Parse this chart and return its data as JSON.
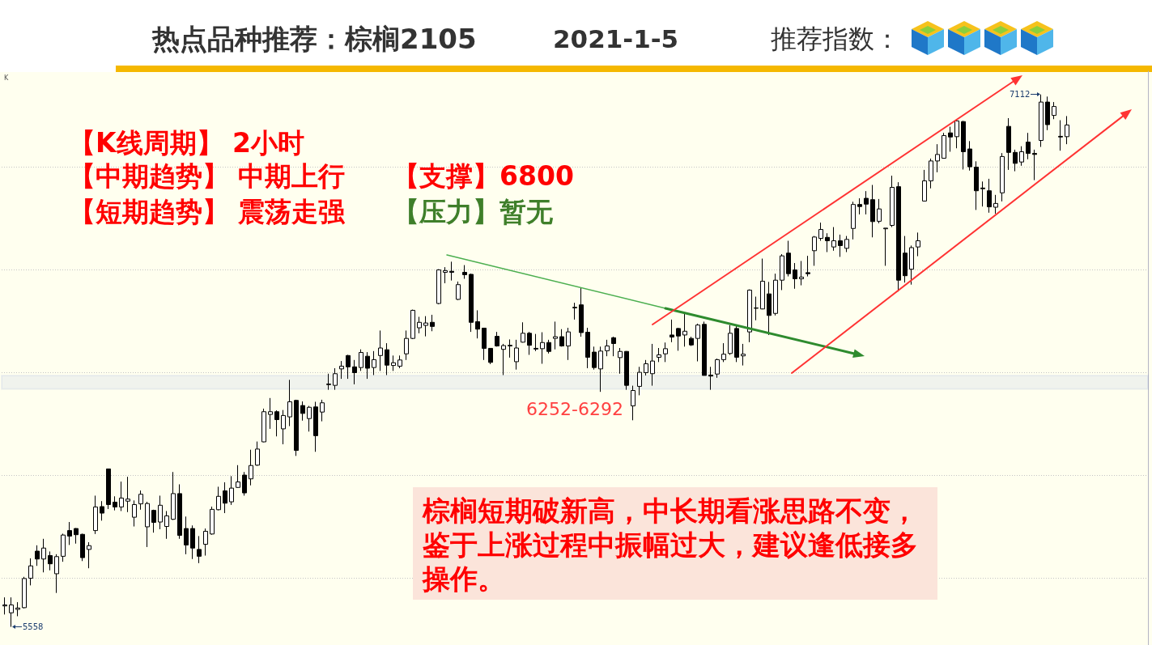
{
  "chart_data": {
    "type": "candlestick",
    "title": "热点品种推荐：棕榈2105",
    "subtitle": "2021-1-5",
    "categories": [
      null,
      null,
      null,
      null,
      null,
      null,
      null,
      null,
      null,
      null,
      null,
      null,
      null,
      null,
      null,
      null,
      null,
      null,
      null,
      null,
      null,
      null,
      null,
      null,
      null,
      null,
      null,
      null,
      null,
      null,
      null,
      null,
      null,
      null,
      null,
      null,
      null,
      null,
      null,
      null,
      null,
      null,
      null,
      null,
      null,
      null,
      null,
      null,
      null,
      null,
      null,
      null,
      null,
      null,
      null,
      null,
      null,
      null,
      null,
      null,
      null,
      null,
      null,
      null,
      null,
      null,
      null,
      null,
      null,
      null,
      null,
      null,
      null,
      null,
      null,
      null,
      null,
      null,
      null,
      null,
      null,
      null,
      null,
      null,
      null,
      null,
      null,
      null,
      null,
      null,
      null,
      null,
      null,
      null,
      null,
      null,
      null,
      null,
      null,
      null,
      null,
      null,
      null,
      null,
      null,
      null,
      null,
      null,
      null,
      null,
      null,
      null,
      null,
      null,
      null,
      null,
      null,
      null,
      null,
      null,
      null,
      null,
      null,
      null,
      null,
      null,
      null,
      null,
      null,
      null,
      null,
      null,
      null,
      null,
      null,
      null,
      null,
      null,
      null,
      null,
      null,
      null,
      null,
      null,
      null,
      null,
      null,
      null,
      null,
      null,
      null,
      null,
      null,
      null,
      null,
      null,
      null,
      null,
      null,
      null,
      null,
      null,
      null,
      null,
      null,
      null,
      null,
      null,
      null,
      null,
      null,
      null,
      null,
      null,
      null,
      null,
      null
    ],
    "ohlc": [
      [
        5619,
        5644,
        5594,
        5622
      ],
      [
        5599,
        5644,
        5558,
        5622
      ],
      [
        5609,
        5630,
        5589,
        5613
      ],
      [
        5614,
        5704,
        5612,
        5699
      ],
      [
        5700,
        5758,
        5679,
        5736
      ],
      [
        5779,
        5796,
        5736,
        5756
      ],
      [
        5756,
        5815,
        5717,
        5788
      ],
      [
        5766,
        5778,
        5723,
        5742
      ],
      [
        5713,
        5770,
        5657,
        5763
      ],
      [
        5764,
        5830,
        5748,
        5826
      ],
      [
        5839,
        5864,
        5797,
        5823
      ],
      [
        5845,
        5846,
        5801,
        5827
      ],
      [
        5828,
        5830,
        5750,
        5760
      ],
      [
        5784,
        5805,
        5729,
        5795
      ],
      [
        5839,
        5941,
        5829,
        5908
      ],
      [
        5909,
        5925,
        5868,
        5890
      ],
      [
        6019,
        6019,
        5902,
        5915
      ],
      [
        5922,
        5939,
        5898,
        5908
      ],
      [
        5908,
        5982,
        5896,
        5934
      ],
      [
        5925,
        5996,
        5893,
        5931
      ],
      [
        5878,
        5927,
        5851,
        5915
      ],
      [
        5917,
        5956,
        5900,
        5945
      ],
      [
        5850,
        5923,
        5791,
        5918
      ],
      [
        5898,
        5900,
        5833,
        5863
      ],
      [
        5864,
        5941,
        5843,
        5913
      ],
      [
        5851,
        5896,
        5815,
        5882
      ],
      [
        5872,
        6010,
        5870,
        5947
      ],
      [
        5947,
        5974,
        5815,
        5825
      ],
      [
        5845,
        5880,
        5770,
        5797
      ],
      [
        5845,
        5854,
        5756,
        5788
      ],
      [
        5784,
        5823,
        5744,
        5764
      ],
      [
        5799,
        5845,
        5766,
        5837
      ],
      [
        5829,
        5909,
        5827,
        5901
      ],
      [
        5900,
        5967,
        5898,
        5939
      ],
      [
        5955,
        5980,
        5890,
        5919
      ],
      [
        5923,
        5998,
        5914,
        5963
      ],
      [
        5965,
        6030,
        5964,
        5981
      ],
      [
        6001,
        6010,
        5941,
        5949
      ],
      [
        5990,
        6075,
        5971,
        6029
      ],
      [
        6030,
        6099,
        6028,
        6077
      ],
      [
        6098,
        6195,
        6097,
        6186
      ],
      [
        6178,
        6226,
        6136,
        6186
      ],
      [
        6186,
        6190,
        6114,
        6163
      ],
      [
        6136,
        6191,
        6091,
        6175
      ],
      [
        6171,
        6279,
        6144,
        6215
      ],
      [
        6219,
        6221,
        6057,
        6073
      ],
      [
        6204,
        6216,
        6160,
        6181
      ],
      [
        6166,
        6203,
        6128,
        6199
      ],
      [
        6200,
        6215,
        6069,
        6116
      ],
      [
        6185,
        6221,
        6158,
        6212
      ],
      [
        6265,
        6297,
        6250,
        6267
      ],
      [
        6263,
        6313,
        6250,
        6297
      ],
      [
        6311,
        6334,
        6282,
        6319
      ],
      [
        6350,
        6352,
        6282,
        6317
      ],
      [
        6317,
        6337,
        6266,
        6300
      ],
      [
        6315,
        6368,
        6305,
        6359
      ],
      [
        6348,
        6360,
        6282,
        6313
      ],
      [
        6315,
        6363,
        6293,
        6338
      ],
      [
        6350,
        6423,
        6305,
        6372
      ],
      [
        6367,
        6386,
        6293,
        6322
      ],
      [
        6321,
        6350,
        6305,
        6329
      ],
      [
        6319,
        6350,
        6313,
        6337
      ],
      [
        6355,
        6423,
        6337,
        6400
      ],
      [
        6400,
        6484,
        6398,
        6482
      ],
      [
        6431,
        6463,
        6415,
        6447
      ],
      [
        6438,
        6465,
        6406,
        6445
      ],
      [
        6447,
        6469,
        6421,
        6435
      ],
      [
        6502,
        6602,
        6500,
        6600
      ],
      [
        6593,
        6608,
        6561,
        6598
      ],
      [
        6596,
        6624,
        6569,
        6593
      ],
      [
        6514,
        6566,
        6512,
        6557
      ],
      [
        6593,
        6614,
        6574,
        6586
      ],
      [
        6587,
        6589,
        6419,
        6447
      ],
      [
        6449,
        6482,
        6400,
        6427
      ],
      [
        6430,
        6430,
        6337,
        6371
      ],
      [
        6371,
        6372,
        6325,
        6330
      ],
      [
        6406,
        6419,
        6376,
        6378
      ],
      [
        6368,
        6384,
        6293,
        6379
      ],
      [
        6378,
        6397,
        6344,
        6380
      ],
      [
        6332,
        6396,
        6309,
        6372
      ],
      [
        6389,
        6447,
        6388,
        6415
      ],
      [
        6415,
        6419,
        6352,
        6380
      ],
      [
        6371,
        6413,
        6363,
        6369
      ],
      [
        6370,
        6418,
        6326,
        6388
      ],
      [
        6388,
        6396,
        6356,
        6362
      ],
      [
        6400,
        6449,
        6368,
        6405
      ],
      [
        6405,
        6427,
        6376,
        6378
      ],
      [
        6378,
        6431,
        6337,
        6419
      ],
      [
        6489,
        6504,
        6455,
        6491
      ],
      [
        6498,
        6549,
        6405,
        6417
      ],
      [
        6418,
        6431,
        6313,
        6345
      ],
      [
        6360,
        6376,
        6309,
        6315
      ],
      [
        6311,
        6376,
        6244,
        6363
      ],
      [
        6364,
        6396,
        6348,
        6378
      ],
      [
        6402,
        6405,
        6348,
        6385
      ],
      [
        6344,
        6372,
        6297,
        6362
      ],
      [
        6362,
        6363,
        6250,
        6263
      ],
      [
        6203,
        6262,
        6161,
        6248
      ],
      [
        6260,
        6317,
        6234,
        6301
      ],
      [
        6300,
        6337,
        6292,
        6326
      ],
      [
        6297,
        6384,
        6262,
        6334
      ],
      [
        6345,
        6372,
        6331,
        6352
      ],
      [
        6355,
        6388,
        6331,
        6370
      ],
      [
        6410,
        6455,
        6389,
        6404
      ],
      [
        6429,
        6431,
        6364,
        6407
      ],
      [
        6410,
        6473,
        6376,
        6421
      ],
      [
        6400,
        6405,
        6378,
        6381
      ],
      [
        6400,
        6443,
        6333,
        6439
      ],
      [
        6441,
        6449,
        6292,
        6292
      ],
      [
        6293,
        6317,
        6250,
        6290
      ],
      [
        6296,
        6341,
        6285,
        6338
      ],
      [
        6338,
        6386,
        6331,
        6354
      ],
      [
        6356,
        6439,
        6352,
        6415
      ],
      [
        6429,
        6439,
        6331,
        6345
      ],
      [
        6349,
        6384,
        6321,
        6354
      ],
      [
        6419,
        6543,
        6389,
        6541
      ],
      [
        6488,
        6522,
        6453,
        6489
      ],
      [
        6486,
        6633,
        6485,
        6567
      ],
      [
        6530,
        6565,
        6410,
        6467
      ],
      [
        6473,
        6589,
        6467,
        6570
      ],
      [
        6570,
        6646,
        6541,
        6641
      ],
      [
        6649,
        6685,
        6581,
        6589
      ],
      [
        6600,
        6620,
        6545,
        6574
      ],
      [
        6574,
        6626,
        6555,
        6579
      ],
      [
        6592,
        6641,
        6581,
        6589
      ],
      [
        6656,
        6699,
        6612,
        6696
      ],
      [
        6692,
        6738,
        6685,
        6718
      ],
      [
        6695,
        6707,
        6652,
        6685
      ],
      [
        6667,
        6725,
        6656,
        6685
      ],
      [
        6685,
        6703,
        6638,
        6671
      ],
      [
        6663,
        6699,
        6652,
        6689
      ],
      [
        6721,
        6799,
        6689,
        6791
      ],
      [
        6791,
        6809,
        6762,
        6785
      ],
      [
        6809,
        6830,
        6762,
        6792
      ],
      [
        6805,
        6848,
        6695,
        6741
      ],
      [
        6742,
        6807,
        6736,
        6778
      ],
      [
        6720,
        6722,
        6612,
        6722
      ],
      [
        6730,
        6875,
        6725,
        6841
      ],
      [
        6843,
        6856,
        6537,
        6570
      ],
      [
        6649,
        6699,
        6563,
        6583
      ],
      [
        6602,
        6671,
        6557,
        6665
      ],
      [
        6667,
        6709,
        6640,
        6685
      ],
      [
        6801,
        6892,
        6800,
        6860
      ],
      [
        6860,
        6925,
        6838,
        6918
      ],
      [
        6918,
        6967,
        6885,
        6937
      ],
      [
        6926,
        7000,
        6925,
        6992
      ],
      [
        7000,
        7018,
        6945,
        6988
      ],
      [
        6989,
        7040,
        6955,
        7035
      ],
      [
        7033,
        7035,
        6893,
        6945
      ],
      [
        6953,
        6976,
        6890,
        6901
      ],
      [
        6900,
        6917,
        6775,
        6831
      ],
      [
        6839,
        6858,
        6785,
        6837
      ],
      [
        6831,
        6866,
        6767,
        6784
      ],
      [
        6783,
        6819,
        6764,
        6794
      ],
      [
        6825,
        6941,
        6800,
        6931
      ],
      [
        7019,
        7043,
        6892,
        6943
      ],
      [
        6943,
        6951,
        6888,
        6911
      ],
      [
        6915,
        6961,
        6904,
        6945
      ],
      [
        6973,
        7000,
        6923,
        6940
      ],
      [
        6940,
        6951,
        6862,
        6937
      ],
      [
        6978,
        7112,
        6959,
        7090
      ],
      [
        7090,
        7106,
        7008,
        7024
      ],
      [
        7051,
        7090,
        7040,
        7077
      ],
      [
        6990,
        7037,
        6948,
        6988
      ],
      [
        6989,
        7049,
        6967,
        7023
      ],
      null,
      null,
      null,
      null,
      null,
      null,
      null,
      null,
      null,
      null,
      null,
      null
    ],
    "ylim": [
      5505,
      7180
    ],
    "yticks": [
      {
        "value": 5700,
        "label": null
      },
      {
        "value": 6000,
        "label": null
      },
      {
        "value": 6300,
        "label": null
      },
      {
        "value": 6600,
        "label": null
      },
      {
        "value": 6900,
        "label": null
      }
    ],
    "grid": "y",
    "tick_labels": false,
    "bands": [
      {
        "axis": "y",
        "from": 6252,
        "to": 6292,
        "label": "6252-6292",
        "color": "#2a4fd6"
      }
    ],
    "annotations": [
      "推荐指数：",
      "K",
      "7112",
      "5558",
      "【K线周期】 2小时",
      "【中期趋势】 中期上行",
      "【支撑】6800",
      "【短期趋势】 震荡走强",
      "【压力】暂无",
      "棕榈短期破新高，中长期看涨思路不变，鉴于上涨过程中振幅过大，建议逢低接多操作。"
    ]
  }
}
